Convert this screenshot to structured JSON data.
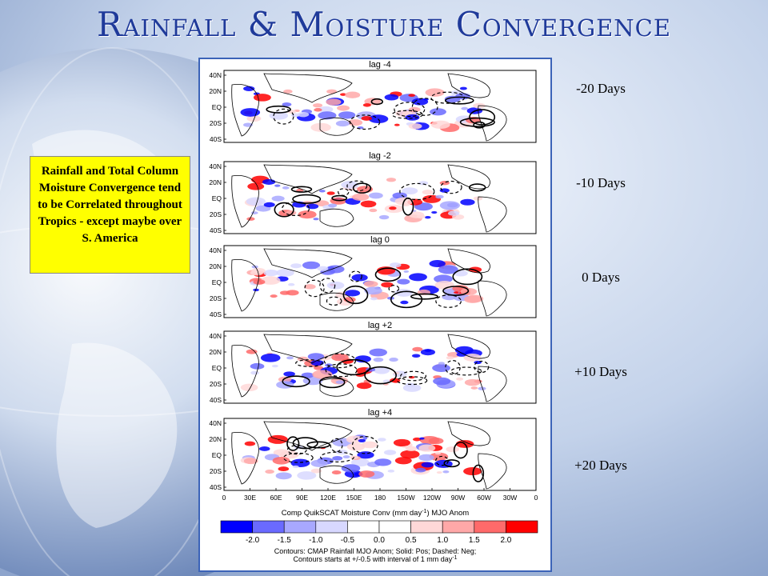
{
  "slide": {
    "title": "Rainfall & Moisture Convergence",
    "callout_text": "Rainfall and Total Column Moisture Convergence tend to be Correlated throughout Tropics - except maybe over S. America"
  },
  "figure": {
    "panels": [
      {
        "title": "lag -4",
        "side_label": "-20 Days"
      },
      {
        "title": "lag -2",
        "side_label": "-10 Days"
      },
      {
        "title": "lag 0",
        "side_label": "0 Days"
      },
      {
        "title": "lag +2",
        "side_label": "+10 Days"
      },
      {
        "title": "lag +4",
        "side_label": "+20 Days"
      }
    ],
    "lat_ticks": [
      "40N",
      "20N",
      "EQ",
      "20S",
      "40S"
    ],
    "lon_ticks": [
      "0",
      "30E",
      "60E",
      "90E",
      "120E",
      "150E",
      "180",
      "150W",
      "120W",
      "90W",
      "60W",
      "30W",
      "0"
    ],
    "colorbar_title": "Comp QuikSCAT Moisture Conv (mm day",
    "colorbar_title_sup": "-1",
    "colorbar_title_tail": ") MJO Anom",
    "colorbar_ticks": [
      "-2.0",
      "-1.5",
      "-1.0",
      "-0.5",
      "0.0",
      "0.5",
      "1.0",
      "1.5",
      "2.0"
    ],
    "colorbar_colors": [
      "#0000ff",
      "#6a6aff",
      "#a8a8ff",
      "#d8d8ff",
      "#ffffff",
      "#ffffff",
      "#ffd8d8",
      "#ffa8a8",
      "#ff6a6a",
      "#ff0000"
    ],
    "note_line1": "Contours: CMAP Rainfall MJO Anom; Solid: Pos; Dashed: Neg;",
    "note_line2": "Contours starts at +/-0.5 with interval of 1 mm day",
    "note_line2_sup": "-1"
  }
}
